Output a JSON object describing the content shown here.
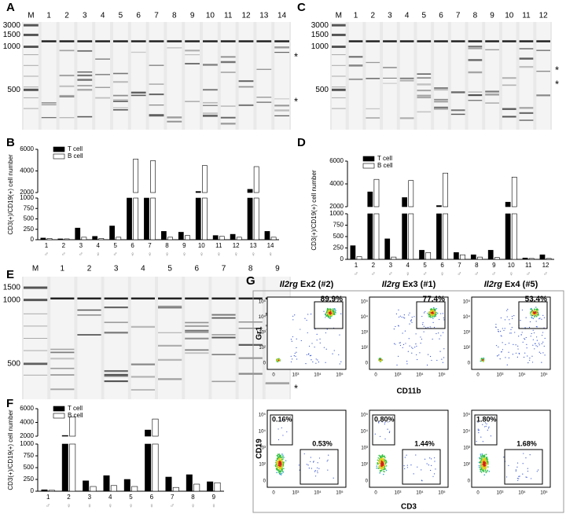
{
  "figure": {
    "gels": [
      {
        "label": "A",
        "lanes": [
          "M",
          "1",
          "2",
          "3",
          "4",
          "5",
          "6",
          "7",
          "8",
          "9",
          "10",
          "11",
          "12",
          "13",
          "14"
        ],
        "sizes": [
          "3000",
          "1500",
          "1000",
          "500"
        ],
        "asterisks": [
          "*",
          "*"
        ]
      },
      {
        "label": "C",
        "lanes": [
          "M",
          "1",
          "2",
          "3",
          "4",
          "5",
          "6",
          "7",
          "8",
          "9",
          "10",
          "11",
          "12"
        ],
        "sizes": [
          "3000",
          "1500",
          "1000",
          "500"
        ],
        "asterisks": [
          "*",
          "*"
        ]
      },
      {
        "label": "E",
        "lanes": [
          "M",
          "1",
          "2",
          "3",
          "4",
          "5",
          "6",
          "7",
          "8",
          "9"
        ],
        "sizes": [
          "1500",
          "1000",
          "500"
        ],
        "asterisks": [
          "*",
          "*"
        ]
      }
    ],
    "flow": {
      "label": "G",
      "columns": [
        {
          "gene": "Il2rg",
          "exon": "Ex2 (#2)",
          "top_gate": "89.9%",
          "bottom_gates": [
            "0.16%",
            "0.53%"
          ]
        },
        {
          "gene": "Il2rg",
          "exon": "Ex3 (#1)",
          "top_gate": "77.4%",
          "bottom_gates": [
            "0.80%",
            "1.44%"
          ]
        },
        {
          "gene": "Il2rg",
          "exon": "Ex4 (#5)",
          "top_gate": "53.4%",
          "bottom_gates": [
            "1.80%",
            "1.68%"
          ]
        }
      ],
      "top_y": "Gr1",
      "top_x": "CD11b",
      "bottom_y": "CD19",
      "bottom_x": "CD3",
      "xticks": [
        "0",
        "10³",
        "10⁴",
        "10⁵"
      ],
      "yticks": [
        "0",
        "10²",
        "10³",
        "10⁴",
        "10⁵"
      ]
    }
  },
  "chart_data": [
    {
      "type": "bar",
      "panel": "B",
      "y_label": "CD3(+)/CD19(+) cell number",
      "categories": [
        "1",
        "2",
        "3",
        "4",
        "5",
        "6",
        "7",
        "8",
        "9",
        "10",
        "11",
        "12",
        "13",
        "14"
      ],
      "sex": [
        "♂",
        "♂",
        "♂",
        "♀",
        "♂",
        "♀",
        "♀",
        "♀",
        "♀",
        "♀",
        "♀",
        "♀",
        "♀",
        "♀"
      ],
      "series": [
        {
          "name": "T cell",
          "color": "#000000",
          "values": [
            40,
            20,
            280,
            80,
            330,
            1500,
            1500,
            200,
            180,
            2100,
            100,
            130,
            2300,
            200
          ]
        },
        {
          "name": "B cell",
          "color": "#ffffff",
          "values": [
            30,
            20,
            60,
            30,
            60,
            5100,
            4950,
            60,
            100,
            4500,
            80,
            60,
            4400,
            60
          ]
        }
      ],
      "segments": [
        {
          "ylim": [
            0,
            1000
          ],
          "yticks": [
            0,
            250,
            500,
            750,
            1000
          ]
        },
        {
          "ylim": [
            2000,
            6000
          ],
          "yticks": [
            2000,
            4000,
            6000
          ]
        }
      ]
    },
    {
      "type": "bar",
      "panel": "D",
      "y_label": "CD3(+)/CD19(+) cell number",
      "categories": [
        "1",
        "2",
        "3",
        "4",
        "5",
        "6",
        "7",
        "8",
        "9",
        "10",
        "11",
        "12"
      ],
      "sex": [
        "♂",
        "♂",
        "♂",
        "♀",
        "♂",
        "♀",
        "♂",
        "♂",
        "♂",
        "♀",
        "♂",
        "♂"
      ],
      "series": [
        {
          "name": "T cell",
          "color": "#000000",
          "values": [
            300,
            3300,
            450,
            2800,
            200,
            2100,
            150,
            100,
            200,
            2400,
            30,
            100
          ]
        },
        {
          "name": "B cell",
          "color": "#ffffff",
          "values": [
            60,
            4400,
            50,
            4300,
            150,
            4950,
            100,
            50,
            40,
            4600,
            20,
            20
          ]
        }
      ],
      "segments": [
        {
          "ylim": [
            0,
            1000
          ],
          "yticks": [
            0,
            250,
            500,
            750,
            1000
          ]
        },
        {
          "ylim": [
            2000,
            6000
          ],
          "yticks": [
            2000,
            4000,
            6000
          ]
        }
      ]
    },
    {
      "type": "bar",
      "panel": "F",
      "y_label": "CD3(+)/CD19(+) cell number",
      "categories": [
        "1",
        "2",
        "3",
        "4",
        "5",
        "6",
        "7",
        "8",
        "9"
      ],
      "sex": [
        "♂",
        "♀",
        "♀",
        "♀",
        "♀",
        "♀",
        "♂",
        "♀",
        "♀"
      ],
      "series": [
        {
          "name": "T cell",
          "color": "#000000",
          "values": [
            30,
            2100,
            220,
            330,
            250,
            2900,
            300,
            350,
            200
          ]
        },
        {
          "name": "B cell",
          "color": "#ffffff",
          "values": [
            20,
            4800,
            100,
            120,
            100,
            4500,
            80,
            150,
            180
          ]
        }
      ],
      "segments": [
        {
          "ylim": [
            0,
            1000
          ],
          "yticks": [
            0,
            250,
            500,
            750,
            1000
          ]
        },
        {
          "ylim": [
            2000,
            6000
          ],
          "yticks": [
            2000,
            4000,
            6000
          ]
        }
      ]
    }
  ]
}
